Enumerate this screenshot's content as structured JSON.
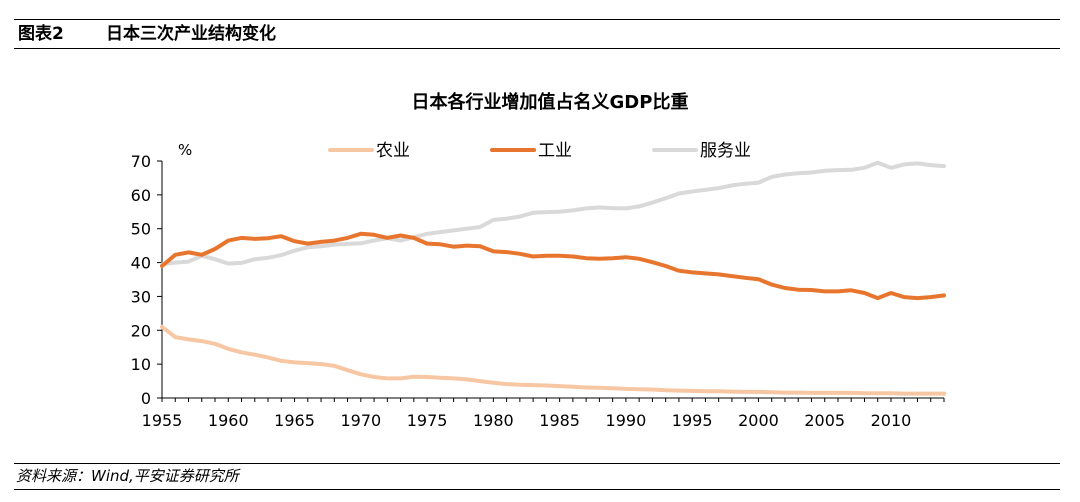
{
  "header": {
    "figure_number": "图表2",
    "figure_title": "日本三次产业结构变化"
  },
  "source": "资料来源：Wind,平安证券研究所",
  "colors": {
    "agriculture": "#f7c6a3",
    "industry": "#e8752e",
    "services": "#d9d9d9",
    "axis": "#000000"
  },
  "chart_data": {
    "type": "line",
    "title": "日本各行业增加值占名义GDP比重",
    "ylabel": "%",
    "xlabel": "",
    "xlim": [
      1955,
      2014
    ],
    "ylim": [
      0,
      70
    ],
    "yticks": [
      0,
      10,
      20,
      30,
      40,
      50,
      60,
      70
    ],
    "xticks": [
      1955,
      1960,
      1965,
      1970,
      1975,
      1980,
      1985,
      1990,
      1995,
      2000,
      2005,
      2010
    ],
    "legend_position": "top",
    "x": [
      1955,
      1956,
      1957,
      1958,
      1959,
      1960,
      1961,
      1962,
      1963,
      1964,
      1965,
      1966,
      1967,
      1968,
      1969,
      1970,
      1971,
      1972,
      1973,
      1974,
      1975,
      1976,
      1977,
      1978,
      1979,
      1980,
      1981,
      1982,
      1983,
      1984,
      1985,
      1986,
      1987,
      1988,
      1989,
      1990,
      1991,
      1992,
      1993,
      1994,
      1995,
      1996,
      1997,
      1998,
      1999,
      2000,
      2001,
      2002,
      2003,
      2004,
      2005,
      2006,
      2007,
      2008,
      2009,
      2010,
      2011,
      2012,
      2013,
      2014
    ],
    "series": [
      {
        "name": "农业",
        "key": "agriculture",
        "values": [
          21,
          18,
          17.3,
          16.8,
          16,
          14.5,
          13.5,
          12.8,
          12,
          11,
          10.5,
          10.3,
          10,
          9.5,
          8.2,
          7,
          6.2,
          5.8,
          5.8,
          6.3,
          6.2,
          6,
          5.8,
          5.5,
          5,
          4.5,
          4.1,
          3.9,
          3.8,
          3.7,
          3.5,
          3.3,
          3.1,
          3,
          2.9,
          2.7,
          2.6,
          2.5,
          2.3,
          2.2,
          2.1,
          2,
          2,
          1.9,
          1.8,
          1.8,
          1.7,
          1.6,
          1.6,
          1.5,
          1.5,
          1.5,
          1.5,
          1.4,
          1.4,
          1.4,
          1.3,
          1.3,
          1.3,
          1.3
        ]
      },
      {
        "name": "工业",
        "key": "industry",
        "values": [
          39,
          42.3,
          43,
          42.3,
          44,
          46.5,
          47.3,
          47,
          47.2,
          47.8,
          46.3,
          45.6,
          46.1,
          46.5,
          47.3,
          48.5,
          48.2,
          47.3,
          48,
          47.3,
          45.6,
          45.4,
          44.7,
          45,
          44.8,
          43.3,
          43.1,
          42.6,
          41.8,
          42,
          42,
          41.8,
          41.3,
          41.1,
          41.3,
          41.6,
          41.1,
          40.1,
          39,
          37.6,
          37.1,
          36.8,
          36.5,
          36,
          35.5,
          35.1,
          33.5,
          32.5,
          32,
          31.9,
          31.5,
          31.5,
          31.8,
          31,
          29.5,
          31,
          29.8,
          29.5,
          29.8,
          30.3
        ]
      },
      {
        "name": "服务业",
        "key": "services",
        "values": [
          39.5,
          40,
          40.3,
          42,
          41,
          39.7,
          39.9,
          41,
          41.4,
          42.2,
          43.5,
          44.5,
          44.8,
          45.3,
          45.5,
          45.7,
          46.5,
          47.2,
          46.5,
          47.5,
          48.5,
          49,
          49.5,
          50,
          50.5,
          52.6,
          53,
          53.6,
          54.7,
          54.9,
          55,
          55.4,
          56,
          56.3,
          56.1,
          56,
          56.6,
          57.7,
          59,
          60.4,
          61,
          61.5,
          62,
          62.8,
          63.3,
          63.6,
          65.3,
          66,
          66.4,
          66.6,
          67.1,
          67.3,
          67.4,
          68,
          69.5,
          68,
          69,
          69.3,
          68.8,
          68.5
        ]
      }
    ]
  }
}
